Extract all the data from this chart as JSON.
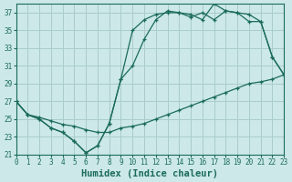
{
  "xlabel": "Humidex (Indice chaleur)",
  "background_color": "#cce8e8",
  "line_color": "#1a6b5a",
  "grid_color": "#aacccc",
  "xlim": [
    0,
    23
  ],
  "ylim": [
    21,
    38
  ],
  "xticks": [
    0,
    1,
    2,
    3,
    4,
    5,
    6,
    7,
    8,
    9,
    10,
    11,
    12,
    13,
    14,
    15,
    16,
    17,
    18,
    19,
    20,
    21,
    22,
    23
  ],
  "yticks": [
    21,
    23,
    25,
    27,
    29,
    31,
    33,
    35,
    37
  ],
  "curve1_x": [
    0,
    1,
    2,
    3,
    4,
    5,
    6,
    7,
    8,
    9,
    10,
    11,
    12,
    13,
    14,
    15,
    16,
    17,
    18,
    19,
    20,
    21,
    22,
    23
  ],
  "curve1_y": [
    27,
    25.5,
    25,
    24,
    23.5,
    22.5,
    21.2,
    22,
    24.5,
    29.5,
    35,
    36.2,
    36.8,
    37,
    37,
    36.8,
    36.2,
    38,
    37.2,
    37,
    36,
    36,
    32,
    30
  ],
  "curve2_x": [
    0,
    1,
    2,
    3,
    4,
    5,
    6,
    7,
    8,
    9,
    10,
    11,
    12,
    13,
    14,
    15,
    16,
    17,
    18,
    19,
    20,
    21,
    22,
    23
  ],
  "curve2_y": [
    27,
    25.5,
    25,
    24,
    23.5,
    22.5,
    21.2,
    22,
    24.5,
    29.5,
    31,
    34,
    36.2,
    37.2,
    37,
    36.5,
    37,
    36.2,
    37.2,
    37,
    36.8,
    36,
    32,
    30
  ],
  "curve3_x": [
    0,
    1,
    2,
    3,
    4,
    5,
    6,
    7,
    8,
    9,
    10,
    11,
    12,
    13,
    14,
    15,
    16,
    17,
    18,
    19,
    20,
    21,
    22,
    23
  ],
  "curve3_y": [
    27,
    25.5,
    25.2,
    24.8,
    24.4,
    24.2,
    23.8,
    23.5,
    23.5,
    24,
    24.2,
    24.5,
    25,
    25.5,
    26,
    26.5,
    27,
    27.5,
    28,
    28.5,
    29,
    29.2,
    29.5,
    30
  ],
  "tick_fontsize": 5.5,
  "xlabel_fontsize": 7.5,
  "lw": 0.9,
  "ms": 2.5
}
